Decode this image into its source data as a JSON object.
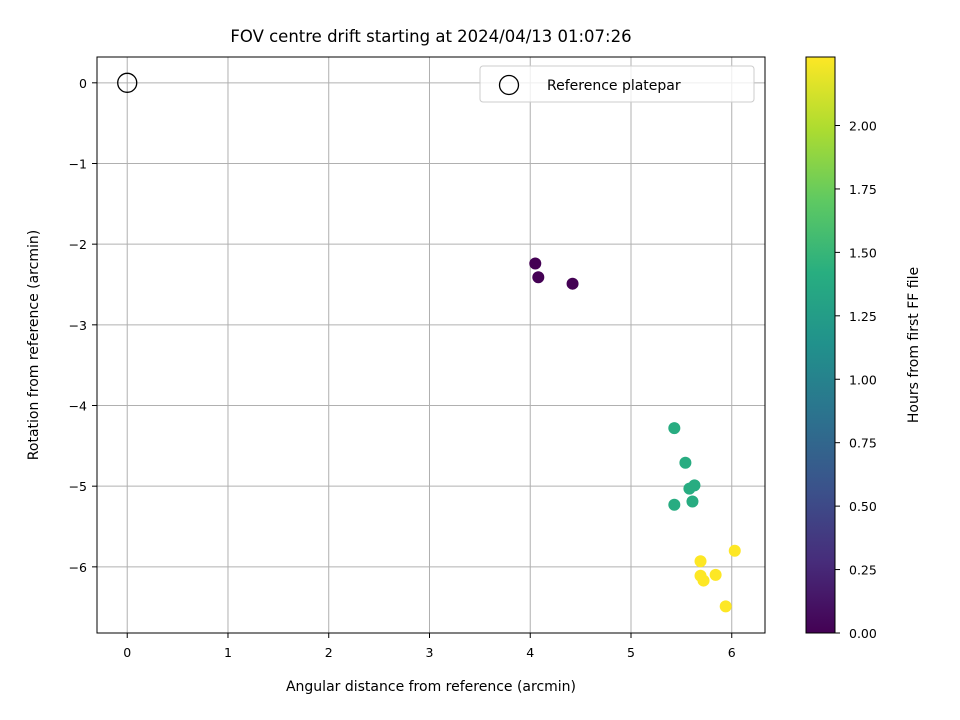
{
  "chart_data": {
    "type": "scatter",
    "title": "FOV centre drift starting at 2024/04/13 01:07:26",
    "xlabel": "Angular distance from reference (arcmin)",
    "ylabel": "Rotation from reference (arcmin)",
    "xlim": [
      -0.3,
      6.33
    ],
    "ylim": [
      -6.82,
      0.32
    ],
    "xticks": [
      0,
      1,
      2,
      3,
      4,
      5,
      6
    ],
    "yticks": [
      0,
      -1,
      -2,
      -3,
      -4,
      -5,
      -6
    ],
    "grid": true,
    "legend": {
      "position": "top-right",
      "entries": [
        "Reference platepar"
      ]
    },
    "reference_point": {
      "name": "Reference platepar",
      "x": 0,
      "y": 0,
      "marker": "open-circle"
    },
    "series": [
      {
        "points": [
          {
            "x": 4.05,
            "y": -2.24,
            "c": 0.0
          },
          {
            "x": 4.08,
            "y": -2.41,
            "c": 0.0
          },
          {
            "x": 4.42,
            "y": -2.49,
            "c": 0.0
          },
          {
            "x": 5.43,
            "y": -4.28,
            "c": 1.4
          },
          {
            "x": 5.54,
            "y": -4.71,
            "c": 1.4
          },
          {
            "x": 5.58,
            "y": -5.03,
            "c": 1.4
          },
          {
            "x": 5.63,
            "y": -4.99,
            "c": 1.4
          },
          {
            "x": 5.61,
            "y": -5.19,
            "c": 1.4
          },
          {
            "x": 5.43,
            "y": -5.23,
            "c": 1.4
          },
          {
            "x": 5.69,
            "y": -5.93,
            "c": 2.27
          },
          {
            "x": 6.03,
            "y": -5.8,
            "c": 2.27
          },
          {
            "x": 5.69,
            "y": -6.11,
            "c": 2.27
          },
          {
            "x": 5.72,
            "y": -6.17,
            "c": 2.27
          },
          {
            "x": 5.84,
            "y": -6.1,
            "c": 2.27
          },
          {
            "x": 5.94,
            "y": -6.49,
            "c": 2.27
          }
        ]
      }
    ],
    "colorbar": {
      "label": "Hours from first FF file",
      "colormap": "viridis",
      "range": [
        0,
        2.27
      ],
      "ticks": [
        "0.00",
        "0.25",
        "0.50",
        "0.75",
        "1.00",
        "1.25",
        "1.50",
        "1.75",
        "2.00"
      ],
      "tick_values": [
        0,
        0.25,
        0.5,
        0.75,
        1.0,
        1.25,
        1.5,
        1.75,
        2.0
      ]
    }
  }
}
